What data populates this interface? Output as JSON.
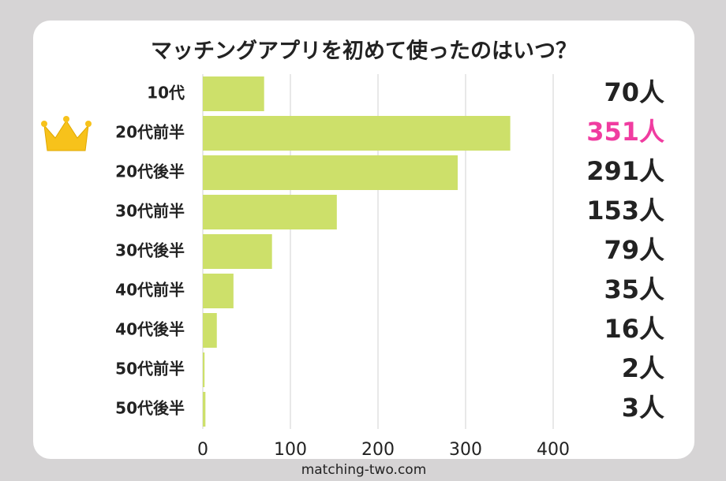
{
  "chart_data": {
    "type": "barh",
    "title": "マッチングアプリを初めて使ったのはいつ？",
    "categories": [
      "10代",
      "20代前半",
      "20代後半",
      "30代前半",
      "30代後半",
      "40代前半",
      "40代後半",
      "50代前半",
      "50代後半"
    ],
    "values": [
      70,
      351,
      291,
      153,
      79,
      35,
      16,
      2,
      3
    ],
    "value_labels": [
      "70人",
      "351人",
      "291人",
      "153人",
      "79人",
      "35人",
      "16人",
      "2人",
      "3人"
    ],
    "value_label_colors": [
      "#222222",
      "#f03ca0",
      "#222222",
      "#222222",
      "#222222",
      "#222222",
      "#222222",
      "#222222",
      "#222222"
    ],
    "color": "#cde06a",
    "xlim": [
      0,
      400
    ],
    "xticks": [
      0,
      100,
      200,
      300,
      400
    ],
    "grid": true,
    "source": "matching-two.com"
  }
}
